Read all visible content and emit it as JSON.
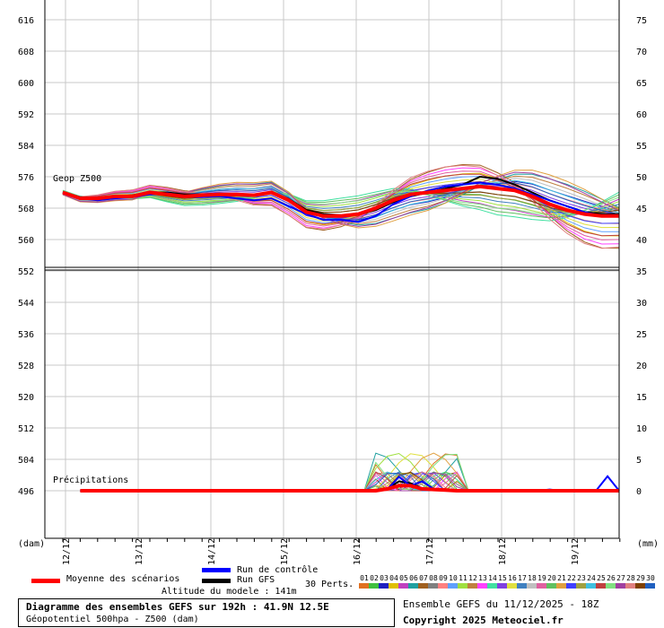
{
  "chart_data": {
    "type": "line",
    "x_ticks": [
      "12/12",
      "13/12",
      "14/12",
      "15/12",
      "16/12",
      "17/12",
      "18/12",
      "19/12"
    ],
    "y_left_ticks": [
      616,
      608,
      600,
      592,
      584,
      576,
      568,
      560,
      552,
      544,
      536,
      528,
      520,
      512,
      504,
      496
    ],
    "y_right_ticks": [
      75,
      70,
      65,
      60,
      55,
      50,
      45,
      40,
      35,
      30,
      25,
      20,
      15,
      10,
      5,
      0
    ],
    "y_left_unit": "(dam)",
    "y_right_unit": "(mm)",
    "upper_panel_label": "Geop Z500",
    "lower_panel_label": "Précipitations",
    "geop_x": [
      0,
      6,
      12,
      18,
      24,
      30,
      36,
      42,
      48,
      54,
      60,
      66,
      72,
      78,
      84,
      90,
      96,
      102,
      108,
      114,
      120,
      126,
      132,
      138,
      144,
      150,
      156,
      162,
      168,
      174,
      180,
      186,
      192
    ],
    "series": [
      {
        "name": "Moyenne des scénarios",
        "color": "#ff0000",
        "values": [
          572,
          570.5,
          570.5,
          571,
          571,
          572,
          571.5,
          571,
          571.3,
          571.5,
          571.5,
          571.3,
          572,
          570,
          567,
          566,
          566,
          566.5,
          568,
          570,
          571.5,
          572,
          572.5,
          573,
          573.5,
          573,
          572.5,
          571,
          569,
          567.5,
          566.5,
          566,
          566
        ]
      },
      {
        "name": "Run de contrôle",
        "color": "#0000ff",
        "values": [
          572,
          570.5,
          570,
          570.5,
          570.8,
          571.5,
          571.8,
          571,
          570.8,
          571,
          570.5,
          570,
          570.5,
          568.5,
          566.5,
          565,
          565,
          564.5,
          566,
          569,
          571,
          572.5,
          573.5,
          574,
          574.5,
          574,
          573,
          571.5,
          570,
          568.5,
          567,
          566,
          566
        ]
      },
      {
        "name": "Run GFS",
        "color": "#000000",
        "values": [
          572,
          570.8,
          570.5,
          571,
          571.3,
          572,
          572,
          571.5,
          571.5,
          571.7,
          571.5,
          571.3,
          572,
          570.3,
          567.5,
          566.5,
          566.2,
          566.3,
          567.5,
          569.5,
          571,
          572,
          573,
          574,
          576,
          575.5,
          574,
          572,
          570,
          568.5,
          567,
          566.5,
          566.5
        ]
      }
    ],
    "precip_x": [
      100,
      104,
      108,
      112,
      116,
      120,
      124,
      128,
      132,
      136,
      140,
      144,
      148,
      152,
      156,
      160,
      164,
      168,
      172,
      176,
      180,
      184,
      188,
      192
    ],
    "precip_series": [
      {
        "name": "Moyenne des scénarios",
        "color": "#ff0000",
        "values": [
          0,
          0,
          0,
          0.3,
          0.8,
          0.8,
          0.3,
          0.2,
          0.1,
          0,
          0,
          0,
          0,
          0,
          0,
          0,
          0,
          0,
          0,
          0,
          0,
          0,
          0,
          0
        ]
      },
      {
        "name": "Run de contrôle",
        "color": "#0000ff",
        "values": [
          0,
          0,
          0,
          0.2,
          2.2,
          0.8,
          1.5,
          0.3,
          0.1,
          0,
          0,
          0,
          0,
          0,
          0,
          0,
          0,
          0.2,
          0,
          0,
          0,
          0,
          2.3,
          0
        ]
      },
      {
        "name": "Run GFS",
        "color": "#000000",
        "values": [
          0,
          0,
          0,
          0.3,
          1.5,
          1.2,
          0.4,
          0.2,
          0,
          0,
          0,
          0,
          0,
          0,
          0,
          0,
          0,
          0,
          0,
          0,
          0,
          0,
          0,
          0
        ]
      }
    ],
    "grid": true
  },
  "legend": {
    "mean_label": "Moyenne des scénarios",
    "control_label": "Run de contrôle",
    "gfs_label": "Run GFS",
    "perts_label": "30 Perts.",
    "altitude_text": "Altitude du modele : 141m",
    "pert_numbers": [
      "01",
      "02",
      "03",
      "04",
      "05",
      "06",
      "07",
      "08",
      "09",
      "10",
      "11",
      "12",
      "13",
      "14",
      "15",
      "16",
      "17",
      "18",
      "19",
      "20",
      "21",
      "22",
      "23",
      "24",
      "25",
      "26",
      "27",
      "28",
      "29",
      "30"
    ],
    "pert_colors": [
      "#e07020",
      "#40c040",
      "#2020c0",
      "#e0c000",
      "#c040c0",
      "#20a0a0",
      "#a06020",
      "#808080",
      "#ff8080",
      "#60a0ff",
      "#a0e040",
      "#c08040",
      "#ff40ff",
      "#40e0a0",
      "#8040e0",
      "#e0e040",
      "#4080c0",
      "#c0c0c0",
      "#e060a0",
      "#60c060",
      "#e0a040",
      "#4040ff",
      "#a0a040",
      "#40c0e0",
      "#c04040",
      "#80e080",
      "#a040a0",
      "#e08080",
      "#804000",
      "#2060c0"
    ]
  },
  "caption": {
    "title": "Diagramme des ensembles GEFS sur 192h : 41.9N 12.5E",
    "subtitle": "Géopotentiel 500hpa - Z500 (dam)"
  },
  "run_info": "Ensemble GEFS du 11/12/2025 - 18Z",
  "copyright": "Copyright 2025 Meteociel.fr"
}
